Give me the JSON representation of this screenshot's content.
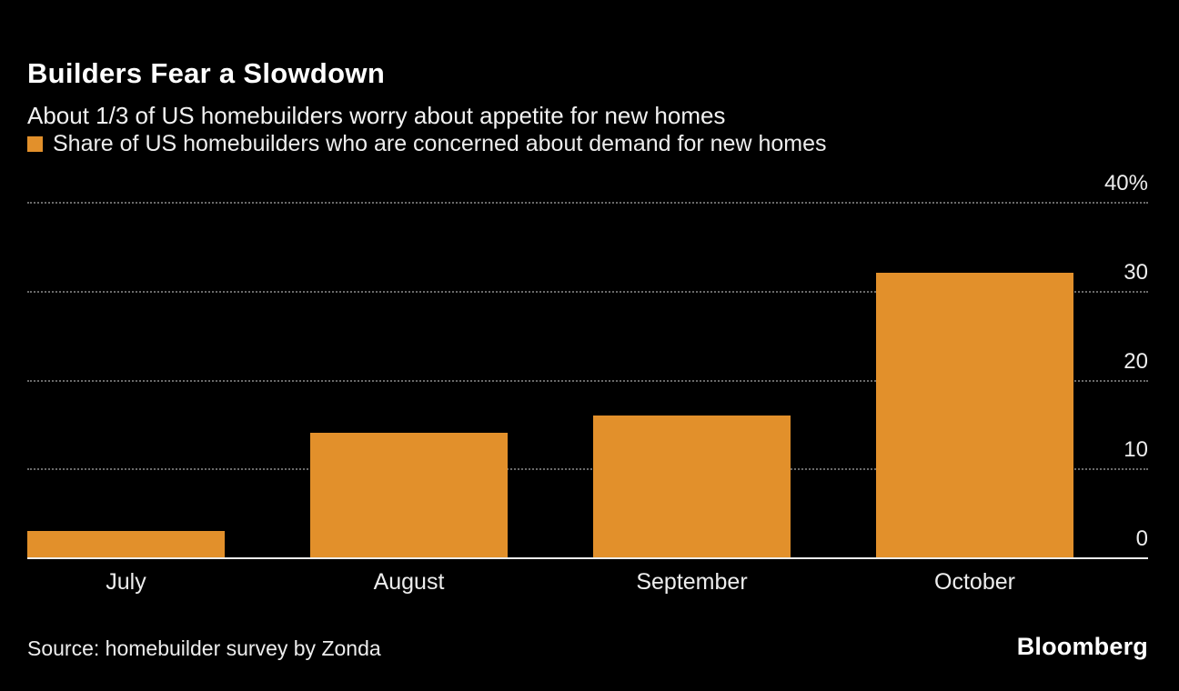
{
  "chart_data": {
    "type": "bar",
    "title": "Builders Fear a Slowdown",
    "subtitle": "About 1/3 of US homebuilders worry about appetite for new homes",
    "legend_label": "Share of US homebuilders who are concerned about demand for new homes",
    "categories": [
      "July",
      "August",
      "September",
      "October"
    ],
    "values": [
      3,
      14,
      16,
      32
    ],
    "ylim": [
      0,
      40
    ],
    "yticks": [
      0,
      10,
      20,
      30,
      40
    ],
    "ytick_labels": [
      "0",
      "10",
      "20",
      "30",
      "40%"
    ],
    "grid": "dotted horizontal",
    "legend_position": "top-left",
    "axis_side": "right",
    "xlabel": "",
    "ylabel": "",
    "colors": {
      "bar": "#e2902b",
      "background": "#000000",
      "gridline": "#6a6a6a",
      "axis_line": "#ececec",
      "text": "#ededed"
    },
    "source": "Source: homebuilder survey by Zonda",
    "brand": "Bloomberg"
  }
}
